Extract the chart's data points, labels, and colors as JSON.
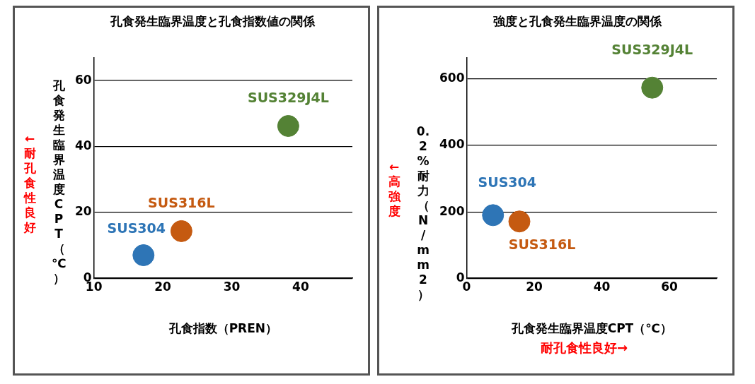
{
  "chart_data": [
    {
      "type": "scatter",
      "title": "孔食発生臨界温度と孔食指数値の関係",
      "xlabel": "孔食指数（PREN）",
      "ylabel": "孔食発生臨界温度CPT（℃）",
      "annotations": [
        "←耐孔食性良好"
      ],
      "xlim": [
        10,
        47.5
      ],
      "xticks": [
        10,
        20,
        30,
        40
      ],
      "ylim": [
        0,
        67
      ],
      "yticks": [
        0,
        20,
        40,
        60
      ],
      "grid": "y",
      "marker": "circle",
      "series": [
        {
          "name": "SUS304",
          "color": "#2e75b6",
          "x": [
            17.2
          ],
          "values": [
            7
          ]
        },
        {
          "name": "SUS316L",
          "color": "#c55a11",
          "x": [
            22.7
          ],
          "values": [
            14.3
          ]
        },
        {
          "name": "SUS329J4L",
          "color": "#548235",
          "x": [
            38.2
          ],
          "values": [
            46.2
          ]
        }
      ]
    },
    {
      "type": "scatter",
      "title": "強度と孔食発生臨界温度の関係",
      "xlabel": "孔食発生臨界温度CPT（℃）",
      "ylabel": "0.2%耐力（N/mm2）",
      "annotations": [
        "←高強度",
        "耐孔食性良好→"
      ],
      "xlim": [
        0,
        74
      ],
      "xticks": [
        0,
        20,
        40,
        60
      ],
      "ylim": [
        0,
        665
      ],
      "yticks": [
        0,
        200,
        400,
        600
      ],
      "grid": "y",
      "marker": "circle",
      "series": [
        {
          "name": "SUS304",
          "color": "#2e75b6",
          "x": [
            7.8
          ],
          "values": [
            190
          ]
        },
        {
          "name": "SUS316L",
          "color": "#c55a11",
          "x": [
            15.6
          ],
          "values": [
            171
          ]
        },
        {
          "name": "SUS329J4L",
          "color": "#548235",
          "x": [
            54.9
          ],
          "values": [
            574
          ]
        }
      ]
    }
  ]
}
